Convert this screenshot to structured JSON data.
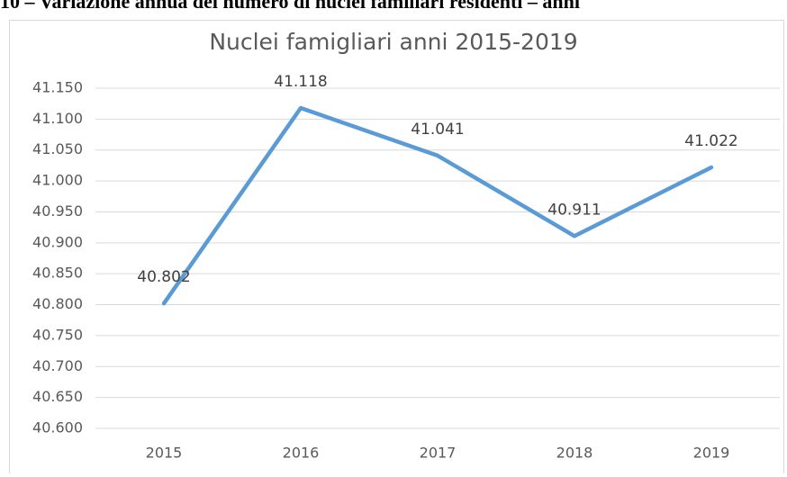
{
  "caption": "10 – Variazione annua del numero di nuclei familiari residenti – anni",
  "chart_data": {
    "type": "line",
    "title": "Nuclei famigliari anni 2015-2019",
    "categories": [
      "2015",
      "2016",
      "2017",
      "2018",
      "2019"
    ],
    "series": [
      {
        "name": "Nuclei famigliari",
        "color": "#5b9bd5",
        "values": [
          40802,
          41118,
          41041,
          40911,
          41022
        ],
        "value_labels": [
          "40.802",
          "41.118",
          "41.041",
          "40.911",
          "41.022"
        ]
      }
    ],
    "ylim": [
      40600,
      41150
    ],
    "yticks": [
      {
        "value": 40600,
        "label": "40.600"
      },
      {
        "value": 40650,
        "label": "40.650"
      },
      {
        "value": 40700,
        "label": "40.700"
      },
      {
        "value": 40750,
        "label": "40.750"
      },
      {
        "value": 40800,
        "label": "40.800"
      },
      {
        "value": 40850,
        "label": "40.850"
      },
      {
        "value": 40900,
        "label": "40.900"
      },
      {
        "value": 40950,
        "label": "40.950"
      },
      {
        "value": 41000,
        "label": "41.000"
      },
      {
        "value": 41050,
        "label": "41.050"
      },
      {
        "value": 41100,
        "label": "41.100"
      },
      {
        "value": 41150,
        "label": "41.150"
      }
    ],
    "grid": true
  }
}
